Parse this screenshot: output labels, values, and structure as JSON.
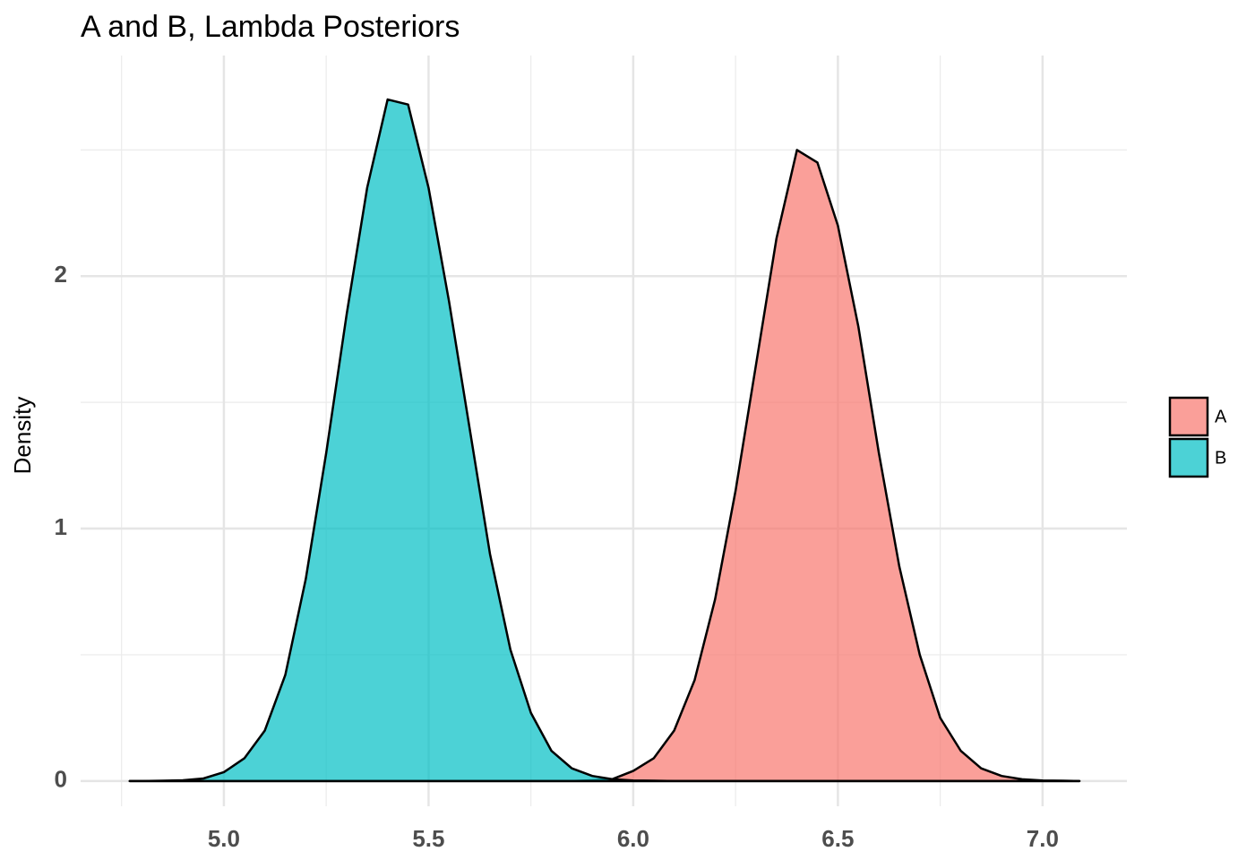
{
  "chart_data": {
    "type": "density",
    "title": "A and B, Lambda Posteriors",
    "y_label": "Density",
    "x": [
      4.77,
      4.8,
      4.85,
      4.9,
      4.95,
      5.0,
      5.05,
      5.1,
      5.15,
      5.2,
      5.25,
      5.3,
      5.35,
      5.4,
      5.45,
      5.5,
      5.55,
      5.6,
      5.65,
      5.7,
      5.75,
      5.8,
      5.85,
      5.9,
      5.95,
      6.0,
      6.05,
      6.1,
      6.15,
      6.2,
      6.25,
      6.3,
      6.35,
      6.4,
      6.45,
      6.5,
      6.55,
      6.6,
      6.65,
      6.7,
      6.75,
      6.8,
      6.85,
      6.9,
      6.95,
      7.0,
      7.05,
      7.09
    ],
    "series": [
      {
        "name": "A",
        "color": "#F8766D",
        "values": [
          0,
          0,
          0,
          0,
          0,
          0,
          0,
          0,
          0,
          0,
          0,
          0,
          0,
          0,
          0,
          0,
          0,
          0,
          0,
          0,
          0,
          0,
          0,
          0.003,
          0.008,
          0.04,
          0.09,
          0.2,
          0.4,
          0.72,
          1.15,
          1.65,
          2.15,
          2.5,
          2.45,
          2.2,
          1.8,
          1.3,
          0.85,
          0.5,
          0.25,
          0.12,
          0.05,
          0.02,
          0.007,
          0.002,
          0.001,
          0
        ]
      },
      {
        "name": "B",
        "color": "#00BFC4",
        "values": [
          0,
          0,
          0.001,
          0.003,
          0.01,
          0.035,
          0.09,
          0.2,
          0.42,
          0.8,
          1.3,
          1.85,
          2.35,
          2.7,
          2.68,
          2.35,
          1.9,
          1.4,
          0.9,
          0.52,
          0.27,
          0.12,
          0.05,
          0.02,
          0.007,
          0.002,
          0.001,
          0,
          0,
          0,
          0,
          0,
          0,
          0,
          0,
          0,
          0,
          0,
          0,
          0,
          0,
          0,
          0,
          0,
          0,
          0,
          0,
          0
        ]
      }
    ],
    "xlim": [
      4.65,
      7.206
    ],
    "ylim": [
      -0.1,
      2.874
    ],
    "xticks": [
      {
        "value": 5,
        "label": "5.0"
      },
      {
        "value": 5.5,
        "label": "5.5"
      },
      {
        "value": 6,
        "label": "6.0"
      },
      {
        "value": 6.5,
        "label": "6.5"
      },
      {
        "value": 7,
        "label": "7.0"
      }
    ],
    "yticks": [
      0,
      1,
      2
    ],
    "minor_xticks": [
      4.75,
      5.25,
      5.75,
      6.25,
      6.75
    ],
    "minor_yticks": [
      0.5,
      1.5,
      2.5
    ],
    "grid": true,
    "legend": "right"
  }
}
